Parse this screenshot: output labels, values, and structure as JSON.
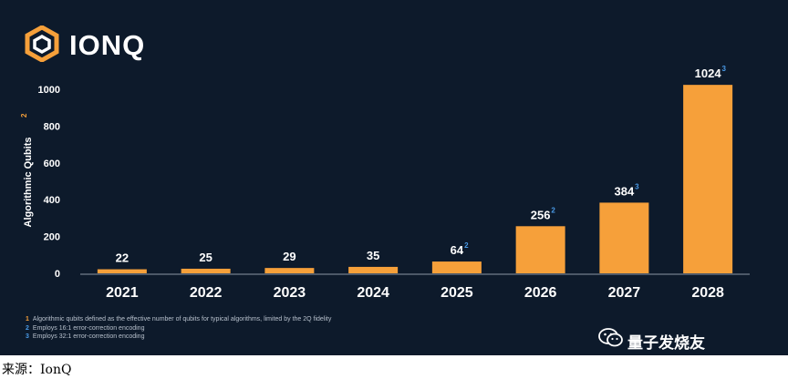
{
  "brand": {
    "name": "IONQ"
  },
  "colors": {
    "background": "#0d1a2b",
    "bar": "#f6a03a",
    "text": "#ffffff",
    "superscript_blue": "#4a9be8",
    "superscript_orange": "#f6a03a"
  },
  "chart_data": {
    "type": "bar",
    "categories": [
      "2021",
      "2022",
      "2023",
      "2024",
      "2025",
      "2026",
      "2027",
      "2028"
    ],
    "values": [
      22,
      25,
      29,
      35,
      64,
      256,
      384,
      1024
    ],
    "value_labels": [
      "22",
      "25",
      "29",
      "35",
      "64",
      "256",
      "384",
      "1024"
    ],
    "value_notes": [
      "",
      "",
      "",
      "",
      "2",
      "2",
      "3",
      "3"
    ],
    "ylabel": "Algorithmic Qubits",
    "ylabel_note": "2",
    "ylim": [
      0,
      1000
    ],
    "yticks": [
      0,
      200,
      400,
      600,
      800,
      1000
    ],
    "ytick_labels": [
      "0",
      "200",
      "400",
      "600",
      "800",
      "1000"
    ],
    "grid": false
  },
  "footnotes": [
    {
      "num": "1",
      "text": "Algorithmic qubits defined as the effective number of qubits for typical algorithms, limited by the 2Q fidelity"
    },
    {
      "num": "2",
      "text": "Employs 16:1 error-correction encoding"
    },
    {
      "num": "3",
      "text": "Employs 32:1 error-correction encoding"
    }
  ],
  "watermark": {
    "text": "量子发烧友",
    "icon": "wechat-icon"
  },
  "source": "来源：IonQ"
}
